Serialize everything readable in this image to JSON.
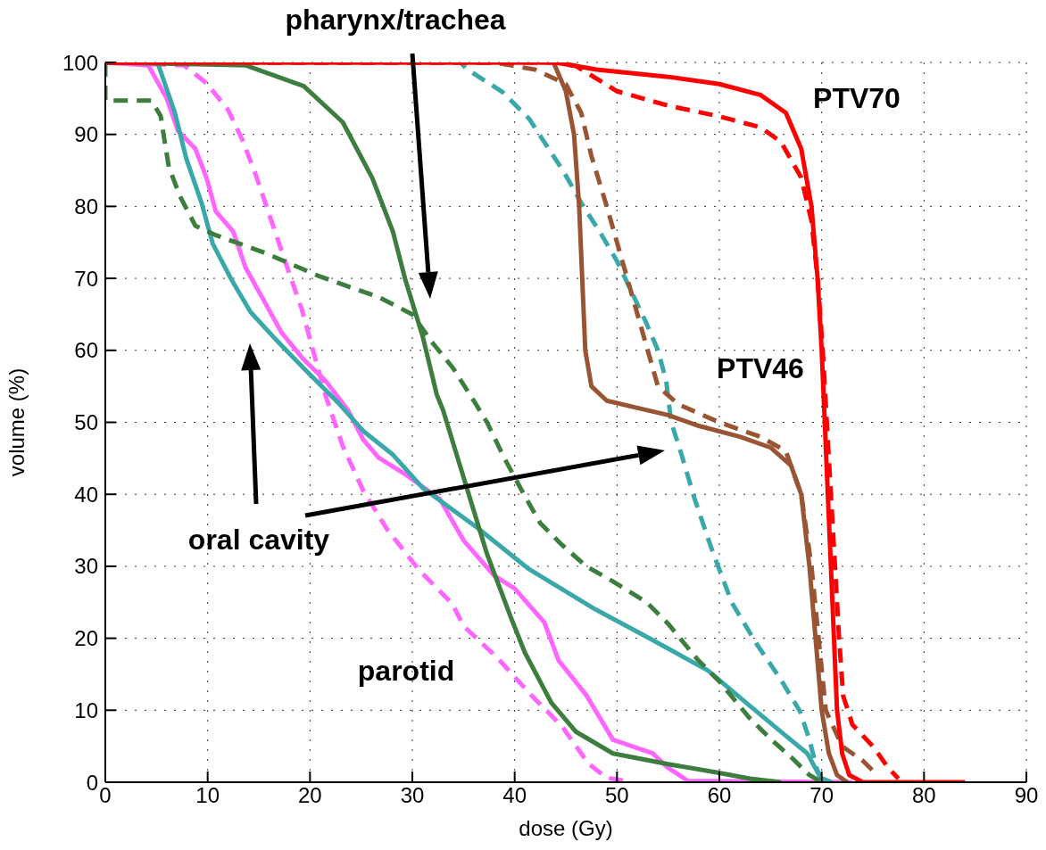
{
  "chart_data": {
    "type": "line",
    "xlabel": "dose (Gy)",
    "ylabel": "volume (%)",
    "xlim": [
      0,
      90
    ],
    "ylim": [
      0,
      100
    ],
    "xticks": [
      0,
      10,
      20,
      30,
      40,
      50,
      60,
      70,
      80,
      90
    ],
    "yticks": [
      0,
      10,
      20,
      30,
      40,
      50,
      60,
      70,
      80,
      90,
      100
    ],
    "grid": true,
    "marker": "none",
    "annotations": [
      "pharynx/trachea",
      "PTV70",
      "PTV46",
      "oral cavity",
      "parotid"
    ],
    "series": [
      {
        "color": "#ff66ff",
        "line_style": "solid",
        "x": [
          0,
          4.2,
          6,
          7.1,
          8.8,
          9.9,
          10.8,
          12.5,
          13.7,
          15.5,
          17.2,
          19.4,
          21.5,
          23.7,
          25.2,
          26.7,
          29.5,
          32.7,
          35,
          38,
          40,
          42.9,
          44.3,
          47,
          49.6,
          53.5,
          54.9,
          56.9,
          73
        ],
        "values": [
          100,
          99.6,
          95,
          90.5,
          88,
          83.9,
          79.3,
          76.5,
          71.5,
          66.9,
          62.5,
          58.7,
          55.8,
          51.7,
          47.6,
          45.1,
          42.6,
          39.3,
          33.6,
          28.7,
          26.9,
          22.2,
          16.9,
          12.1,
          5.9,
          4,
          2.1,
          0.2,
          0
        ]
      },
      {
        "color": "#ff66ff",
        "line_style": "dashed",
        "x": [
          0,
          7.7,
          9.9,
          12,
          13.4,
          14.6,
          15.7,
          16.8,
          18,
          19.2,
          20.3,
          21.5,
          23.2,
          25.2,
          27.5,
          30.7,
          33.9,
          35,
          38.3,
          41.6,
          44.6,
          47.2,
          49,
          51.5
        ],
        "values": [
          100,
          99.6,
          97.1,
          93.4,
          89.2,
          84.8,
          80.2,
          75.6,
          70.6,
          65.7,
          60,
          53.8,
          46.7,
          40.5,
          35.2,
          29.4,
          24.8,
          21.7,
          17.3,
          12.1,
          7.8,
          2.6,
          0.6,
          0
        ]
      },
      {
        "color": "#3aa8a8",
        "line_style": "solid",
        "x": [
          0,
          5.1,
          6.8,
          7.9,
          9.4,
          10.5,
          12.3,
          14.2,
          16.6,
          19.4,
          22.9,
          25.2,
          28.1,
          31,
          36.3,
          41.3,
          47.9,
          52.9,
          58.9,
          62.9,
          66.2,
          68.6,
          69.9,
          71
        ],
        "values": [
          100,
          100,
          93,
          86.7,
          80.5,
          74.8,
          69.9,
          65.3,
          61.6,
          57.5,
          52.5,
          48.8,
          45.5,
          40.9,
          35.4,
          29.7,
          24,
          20.2,
          15.5,
          10.7,
          6.8,
          4,
          0.6,
          0
        ]
      },
      {
        "color": "#3aa8a8",
        "line_style": "dashed",
        "x": [
          0,
          34.7,
          35.3,
          38.8,
          41.4,
          43.1,
          44.8,
          46.5,
          48.3,
          50,
          51.4,
          52.8,
          54,
          54.8,
          55.3,
          56.2,
          57.6,
          59.2,
          61.2,
          63.6,
          65.9,
          67.9,
          68.8,
          69.5,
          70
        ],
        "values": [
          100,
          100,
          99.1,
          95.9,
          92.2,
          88.5,
          84.8,
          80.5,
          76.5,
          72.4,
          68.2,
          64,
          60,
          55.8,
          50,
          46,
          39.3,
          32.6,
          25,
          19.3,
          14.5,
          9.8,
          5.9,
          2,
          0
        ]
      },
      {
        "color": "#3d7d3d",
        "line_style": "solid",
        "x": [
          0,
          13.7,
          19.4,
          23.2,
          26.1,
          28.1,
          29.3,
          31,
          32.4,
          33,
          37.3,
          39.6,
          41,
          43.6,
          46,
          49.6,
          55,
          59.6,
          63,
          66
        ],
        "values": [
          100,
          99.6,
          96.7,
          91.7,
          83.9,
          76.5,
          69.9,
          62,
          53.8,
          51.7,
          31.7,
          23,
          18,
          11,
          7,
          4,
          2.5,
          1.4,
          0.5,
          0
        ]
      },
      {
        "color": "#3d7d3d",
        "line_style": "dashed",
        "x": [
          0,
          0,
          4.5,
          5.4,
          6.2,
          7.3,
          8.8,
          10.8,
          15.5,
          20.9,
          26.7,
          30,
          32,
          34,
          36,
          37.3,
          39,
          40.9,
          42.5,
          44.6,
          47,
          49.6,
          52.9,
          55,
          57.9,
          60,
          62.9,
          65,
          67,
          68.8,
          70
        ],
        "values": [
          100,
          94.7,
          94.7,
          92.6,
          85.5,
          81.4,
          77.3,
          76,
          73.6,
          70.3,
          67.4,
          65,
          61,
          57.5,
          53,
          50,
          45,
          40,
          36,
          33,
          30,
          27.9,
          25,
          22,
          17,
          14,
          9,
          6,
          3.5,
          1,
          0
        ]
      },
      {
        "color": "#995533",
        "line_style": "solid",
        "x": [
          0,
          43.8,
          45,
          45.8,
          46.3,
          46.6,
          46.9,
          47.5,
          49,
          52,
          55,
          58,
          62,
          65,
          67,
          68,
          68.8,
          69.4,
          70,
          70.7,
          71.5,
          72.5
        ],
        "values": [
          100,
          100,
          96,
          90,
          80,
          70,
          60,
          55,
          53,
          52,
          51,
          49.5,
          48,
          46.5,
          44,
          40,
          30,
          20,
          10,
          4,
          1,
          0
        ]
      },
      {
        "color": "#995533",
        "line_style": "dashed",
        "x": [
          0,
          38,
          42,
          45,
          46.5,
          47.5,
          49,
          50,
          51,
          52,
          53,
          54,
          56,
          60,
          64,
          66.5,
          68,
          69,
          69.7,
          70.4,
          72,
          74,
          75
        ],
        "values": [
          100,
          100,
          99,
          97,
          93,
          87,
          80,
          75,
          70,
          65,
          60,
          55,
          52.5,
          50,
          48,
          46,
          40,
          30,
          20,
          10,
          5,
          3,
          1.6
        ]
      },
      {
        "color": "#ff0000",
        "line_style": "dashed",
        "x": [
          0,
          44,
          46,
          50,
          55,
          60,
          64,
          66,
          68,
          69,
          69.6,
          70.1,
          70.5,
          70.9,
          71.3,
          71.7,
          72.1,
          73,
          75,
          76.5,
          77.5
        ],
        "values": [
          100,
          100,
          99.5,
          96,
          94,
          92.5,
          91,
          89,
          84,
          78,
          70,
          60,
          50,
          40,
          30,
          20,
          12,
          8,
          5,
          2,
          0.5
        ]
      },
      {
        "color": "#ff0000",
        "line_style": "solid",
        "x": [
          0,
          44,
          48,
          55,
          60,
          64,
          66.5,
          68,
          69,
          69.6,
          70,
          70.3,
          70.6,
          70.9,
          71.2,
          71.5,
          72,
          72.7,
          74,
          84
        ],
        "values": [
          100,
          100,
          99,
          98,
          97,
          95.5,
          93,
          88,
          80,
          70,
          60,
          50,
          40,
          30,
          20,
          10,
          4,
          1,
          0,
          0
        ]
      }
    ]
  }
}
